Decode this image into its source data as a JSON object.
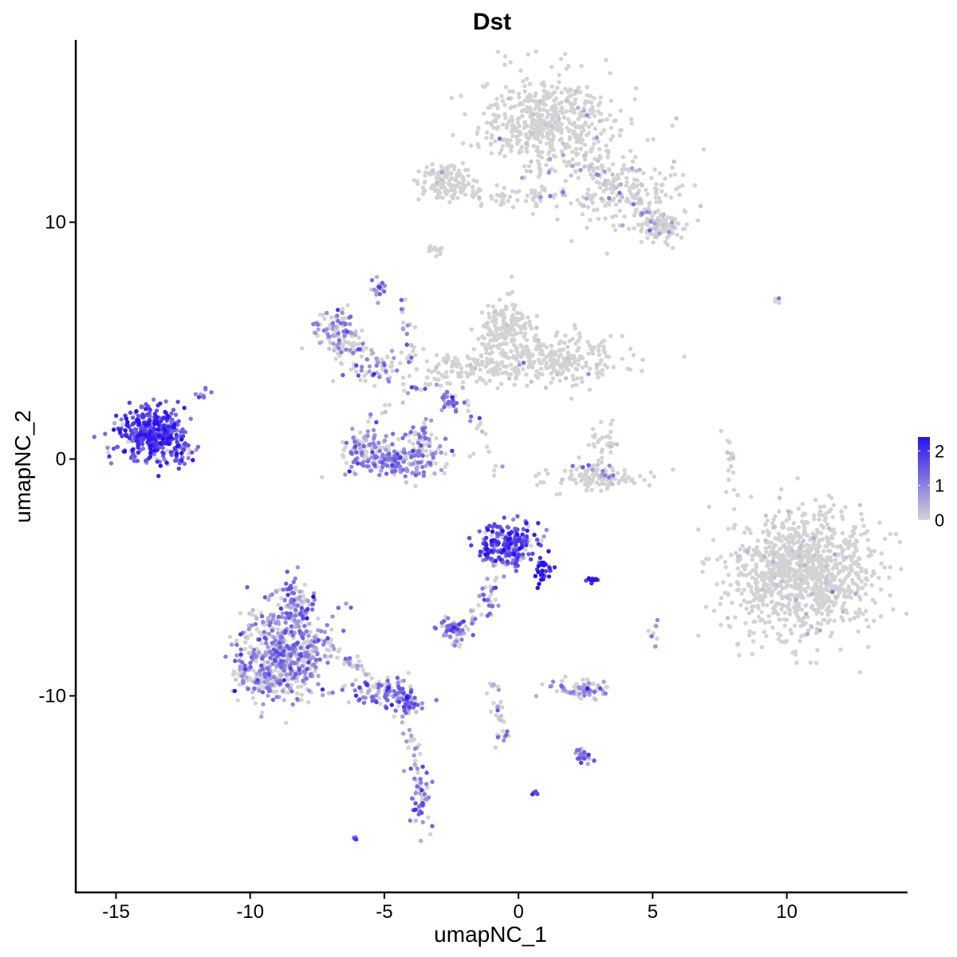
{
  "chart_data": {
    "type": "scatter",
    "title": "Dst",
    "xlabel": "umapNC_1",
    "ylabel": "umapNC_2",
    "xlim": [
      -16.5,
      14.5
    ],
    "ylim": [
      -18.3,
      17.7
    ],
    "x_ticks": [
      -15,
      -10,
      -5,
      0,
      5,
      10
    ],
    "x_tick_labels": [
      "-15",
      "-10",
      "-5",
      "0",
      "5",
      "10"
    ],
    "y_ticks": [
      -10,
      0,
      10
    ],
    "y_tick_labels": [
      "-10",
      "0",
      "10"
    ],
    "grid": false,
    "color_scale": {
      "low_color": "#d3d3d3",
      "high_color": "#2a10f0",
      "min": 0,
      "max": 2.4,
      "legend_ticks": [
        0,
        1,
        2
      ],
      "legend_tick_labels": [
        "0",
        "1",
        "2"
      ],
      "legend_position": "right"
    },
    "clusters": [
      {
        "cx": 1.2,
        "cy": 14.2,
        "sx": 1.3,
        "sy": 1.0,
        "n": 520,
        "expr_mean": 0.05,
        "expr_prob": 0.05
      },
      {
        "cx": 3.9,
        "cy": 11.3,
        "sx": 1.2,
        "sy": 0.9,
        "n": 200,
        "expr_mean": 0.2,
        "expr_prob": 0.12
      },
      {
        "cx": 5.3,
        "cy": 9.8,
        "sx": 0.45,
        "sy": 0.35,
        "n": 90,
        "expr_mean": 0.3,
        "expr_prob": 0.15
      },
      {
        "cx": -2.6,
        "cy": 11.8,
        "sx": 0.55,
        "sy": 0.35,
        "n": 120,
        "expr_mean": 0.05,
        "expr_prob": 0.04
      },
      {
        "cx": -0.5,
        "cy": 11.1,
        "sx": 1.1,
        "sy": 0.2,
        "n": 60,
        "expr_mean": 0.1,
        "expr_prob": 0.08
      },
      {
        "cx": -0.5,
        "cy": 5.6,
        "sx": 0.5,
        "sy": 0.55,
        "n": 160,
        "expr_mean": 0.03,
        "expr_prob": 0.03
      },
      {
        "cx": 1.3,
        "cy": 4.2,
        "sx": 1.3,
        "sy": 0.55,
        "n": 260,
        "expr_mean": 0.05,
        "expr_prob": 0.04
      },
      {
        "cx": -1.8,
        "cy": 3.8,
        "sx": 1.3,
        "sy": 0.35,
        "n": 110,
        "expr_mean": 0.06,
        "expr_prob": 0.05
      },
      {
        "cx": -6.9,
        "cy": 5.6,
        "sx": 0.35,
        "sy": 0.35,
        "n": 70,
        "expr_mean": 1.0,
        "expr_prob": 0.6
      },
      {
        "cx": -6.5,
        "cy": 4.8,
        "sx": 0.5,
        "sy": 0.4,
        "n": 50,
        "expr_mean": 0.8,
        "expr_prob": 0.4
      },
      {
        "cx": -5.3,
        "cy": 3.9,
        "sx": 0.6,
        "sy": 0.35,
        "n": 60,
        "expr_mean": 0.9,
        "expr_prob": 0.5
      },
      {
        "cx": -4.6,
        "cy": 0.0,
        "sx": 0.9,
        "sy": 0.45,
        "n": 230,
        "expr_mean": 0.95,
        "expr_prob": 0.6
      },
      {
        "cx": -5.9,
        "cy": 0.8,
        "sx": 0.25,
        "sy": 0.35,
        "n": 40,
        "expr_mean": 0.8,
        "expr_prob": 0.5
      },
      {
        "cx": -3.6,
        "cy": 0.8,
        "sx": 0.25,
        "sy": 0.5,
        "n": 50,
        "expr_mean": 0.9,
        "expr_prob": 0.55
      },
      {
        "cx": -2.6,
        "cy": 2.4,
        "sx": 0.25,
        "sy": 0.25,
        "n": 25,
        "expr_mean": 1.2,
        "expr_prob": 0.7
      },
      {
        "cx": -13.7,
        "cy": 1.1,
        "sx": 0.6,
        "sy": 0.55,
        "n": 380,
        "expr_mean": 1.7,
        "expr_prob": 0.95
      },
      {
        "cx": -12.6,
        "cy": 0.2,
        "sx": 0.3,
        "sy": 0.3,
        "n": 40,
        "expr_mean": 1.6,
        "expr_prob": 0.9
      },
      {
        "cx": -11.7,
        "cy": 2.7,
        "sx": 0.15,
        "sy": 0.12,
        "n": 10,
        "expr_mean": 1.4,
        "expr_prob": 0.9
      },
      {
        "cx": 2.7,
        "cy": -0.8,
        "sx": 0.9,
        "sy": 0.25,
        "n": 110,
        "expr_mean": 0.05,
        "expr_prob": 0.05
      },
      {
        "cx": 3.2,
        "cy": 0.8,
        "sx": 0.25,
        "sy": 0.4,
        "n": 30,
        "expr_mean": 0.03,
        "expr_prob": 0.03
      },
      {
        "cx": 10.6,
        "cy": -4.8,
        "sx": 1.4,
        "sy": 1.3,
        "n": 1050,
        "expr_mean": 0.05,
        "expr_prob": 0.04
      },
      {
        "cx": -0.5,
        "cy": -3.6,
        "sx": 0.55,
        "sy": 0.5,
        "n": 230,
        "expr_mean": 1.6,
        "expr_prob": 0.85
      },
      {
        "cx": 0.9,
        "cy": -4.7,
        "sx": 0.2,
        "sy": 0.35,
        "n": 30,
        "expr_mean": 2.1,
        "expr_prob": 1.0
      },
      {
        "cx": -1.0,
        "cy": -6.0,
        "sx": 0.2,
        "sy": 0.4,
        "n": 20,
        "expr_mean": 1.2,
        "expr_prob": 0.7
      },
      {
        "cx": 2.8,
        "cy": -5.1,
        "sx": 0.18,
        "sy": 0.06,
        "n": 14,
        "expr_mean": 1.9,
        "expr_prob": 1.0
      },
      {
        "cx": -8.7,
        "cy": -8.2,
        "sx": 0.85,
        "sy": 0.9,
        "n": 520,
        "expr_mean": 0.95,
        "expr_prob": 0.6
      },
      {
        "cx": -8.3,
        "cy": -6.0,
        "sx": 0.4,
        "sy": 0.45,
        "n": 90,
        "expr_mean": 1.1,
        "expr_prob": 0.7
      },
      {
        "cx": -9.6,
        "cy": -9.3,
        "sx": 0.5,
        "sy": 0.35,
        "n": 110,
        "expr_mean": 0.8,
        "expr_prob": 0.5
      },
      {
        "cx": -5.0,
        "cy": -9.9,
        "sx": 0.7,
        "sy": 0.35,
        "n": 80,
        "expr_mean": 1.1,
        "expr_prob": 0.75
      },
      {
        "cx": -4.2,
        "cy": -10.3,
        "sx": 0.3,
        "sy": 0.25,
        "n": 40,
        "expr_mean": 1.3,
        "expr_prob": 0.8
      },
      {
        "cx": -3.6,
        "cy": -14.5,
        "sx": 0.2,
        "sy": 0.6,
        "n": 40,
        "expr_mean": 1.1,
        "expr_prob": 0.7
      },
      {
        "cx": -2.4,
        "cy": -7.1,
        "sx": 0.3,
        "sy": 0.2,
        "n": 60,
        "expr_mean": 1.1,
        "expr_prob": 0.7
      },
      {
        "cx": -2.3,
        "cy": -7.7,
        "sx": 0.15,
        "sy": 0.15,
        "n": 10,
        "expr_mean": 1.0,
        "expr_prob": 0.7
      },
      {
        "cx": 2.3,
        "cy": -9.7,
        "sx": 0.5,
        "sy": 0.2,
        "n": 80,
        "expr_mean": 0.8,
        "expr_prob": 0.5
      },
      {
        "cx": 2.4,
        "cy": -12.5,
        "sx": 0.2,
        "sy": 0.15,
        "n": 25,
        "expr_mean": 1.2,
        "expr_prob": 0.8
      },
      {
        "cx": 0.6,
        "cy": -14.1,
        "sx": 0.05,
        "sy": 0.05,
        "n": 6,
        "expr_mean": 1.6,
        "expr_prob": 1.0
      },
      {
        "cx": -6.1,
        "cy": -16.0,
        "sx": 0.05,
        "sy": 0.05,
        "n": 5,
        "expr_mean": 1.3,
        "expr_prob": 1.0
      },
      {
        "cx": -5.2,
        "cy": 7.3,
        "sx": 0.15,
        "sy": 0.25,
        "n": 20,
        "expr_mean": 1.0,
        "expr_prob": 0.6
      },
      {
        "cx": -3.1,
        "cy": 8.8,
        "sx": 0.15,
        "sy": 0.12,
        "n": 12,
        "expr_mean": 0.0,
        "expr_prob": 0.0
      },
      {
        "cx": 5.0,
        "cy": -7.4,
        "sx": 0.12,
        "sy": 0.3,
        "n": 10,
        "expr_mean": 0.8,
        "expr_prob": 0.6
      },
      {
        "cx": 9.6,
        "cy": 6.7,
        "sx": 0.1,
        "sy": 0.05,
        "n": 5,
        "expr_mean": 1.0,
        "expr_prob": 0.6
      },
      {
        "cx": 7.9,
        "cy": -0.3,
        "sx": 0.1,
        "sy": 0.6,
        "n": 12,
        "expr_mean": 0.1,
        "expr_prob": 0.1
      }
    ],
    "bridges": [
      {
        "from": [
          -5.9,
          1.5
        ],
        "to": [
          -2.0,
          4.2
        ],
        "n": 30
      },
      {
        "from": [
          -2.0,
          3.2
        ],
        "to": [
          -0.8,
          -0.8
        ],
        "n": 18
      },
      {
        "from": [
          -0.9,
          -4.5
        ],
        "to": [
          -1.7,
          -6.8
        ],
        "n": 15
      },
      {
        "from": [
          -7.6,
          -7.6
        ],
        "to": [
          -4.4,
          -10.0
        ],
        "n": 60
      },
      {
        "from": [
          -4.2,
          -10.4
        ],
        "to": [
          -3.6,
          -14.8
        ],
        "n": 35
      },
      {
        "from": [
          -1.0,
          -9.2
        ],
        "to": [
          -0.5,
          -11.9
        ],
        "n": 35
      },
      {
        "from": [
          -4.4,
          6.8
        ],
        "to": [
          -3.9,
          3.8
        ],
        "n": 20
      },
      {
        "from": [
          1.0,
          12.5
        ],
        "to": [
          0.8,
          10.8
        ],
        "n": 18
      },
      {
        "from": [
          2.8,
          12.5
        ],
        "to": [
          5.5,
          9.5
        ],
        "n": 40
      },
      {
        "from": [
          2.0,
          -0.1
        ],
        "to": [
          3.8,
          -0.9
        ],
        "n": 20
      },
      {
        "from": [
          7.6,
          1.5
        ],
        "to": [
          8.2,
          -1.8
        ],
        "n": 6
      }
    ]
  }
}
